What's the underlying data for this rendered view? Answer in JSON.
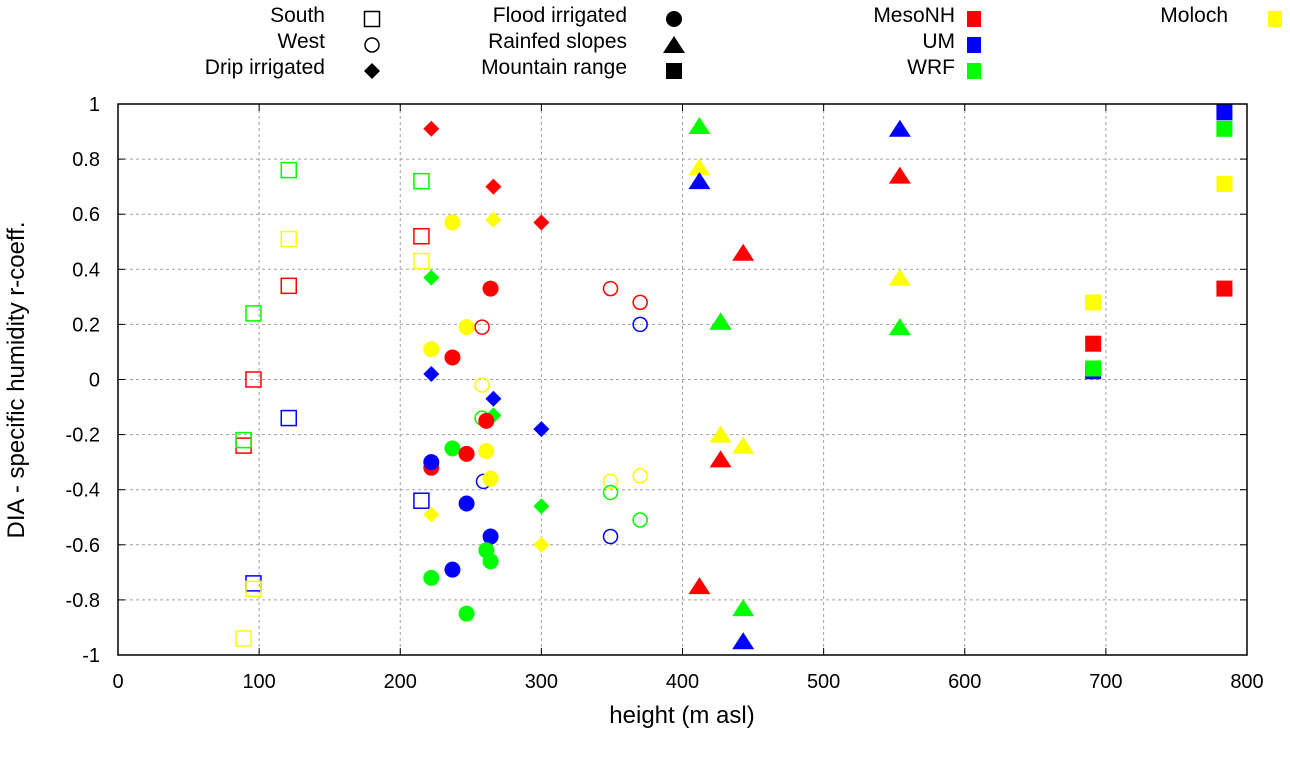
{
  "chart_data": {
    "type": "scatter",
    "title": "",
    "xlabel": "height (m asl)",
    "ylabel": "DIA - specific humidity r-coeff.",
    "xlim": [
      0,
      800
    ],
    "ylim": [
      -1,
      1
    ],
    "xticks": [
      "0",
      "100",
      "200",
      "300",
      "400",
      "500",
      "600",
      "700",
      "800"
    ],
    "yticks": [
      "1",
      "0.8",
      "0.6",
      "0.4",
      "0.2",
      "0",
      "-0.2",
      "-0.4",
      "-0.6",
      "-0.8",
      "-1"
    ],
    "grid": true,
    "legend_position": "top",
    "legend_sites": [
      {
        "label": "South",
        "marker": "open-square"
      },
      {
        "label": "West",
        "marker": "open-circle"
      },
      {
        "label": "Drip irrigated",
        "marker": "filled-diamond"
      },
      {
        "label": "Flood irrigated",
        "marker": "filled-circle"
      },
      {
        "label": "Rainfed slopes",
        "marker": "filled-triangle"
      },
      {
        "label": "Mountain range",
        "marker": "filled-square"
      }
    ],
    "legend_models": [
      {
        "label": "MesoNH",
        "color": "#ff0000"
      },
      {
        "label": "UM",
        "color": "#0000ff"
      },
      {
        "label": "WRF",
        "color": "#00ff00"
      },
      {
        "label": "Moloch",
        "color": "#ffff00"
      }
    ],
    "series": [
      {
        "site": "South",
        "marker": "open-square",
        "points": [
          {
            "model": "WRF",
            "x": 121,
            "y": 0.76
          },
          {
            "model": "Moloch",
            "x": 121,
            "y": 0.51
          },
          {
            "model": "MesoNH",
            "x": 121,
            "y": 0.34
          },
          {
            "model": "WRF",
            "x": 96,
            "y": 0.24
          },
          {
            "model": "MesoNH",
            "x": 96,
            "y": 0.0
          },
          {
            "model": "UM",
            "x": 121,
            "y": -0.14
          },
          {
            "model": "MesoNH",
            "x": 89,
            "y": -0.24
          },
          {
            "model": "WRF",
            "x": 89,
            "y": -0.22
          },
          {
            "model": "UM",
            "x": 96,
            "y": -0.74
          },
          {
            "model": "Moloch",
            "x": 96,
            "y": -0.76
          },
          {
            "model": "Moloch",
            "x": 89,
            "y": -0.94
          },
          {
            "model": "WRF",
            "x": 215,
            "y": 0.72
          },
          {
            "model": "MesoNH",
            "x": 215,
            "y": 0.52
          },
          {
            "model": "Moloch",
            "x": 215,
            "y": 0.43
          },
          {
            "model": "UM",
            "x": 215,
            "y": -0.44
          }
        ]
      },
      {
        "site": "West",
        "marker": "open-circle",
        "points": [
          {
            "model": "MesoNH",
            "x": 349,
            "y": 0.33
          },
          {
            "model": "MesoNH",
            "x": 370,
            "y": 0.28
          },
          {
            "model": "UM",
            "x": 370,
            "y": 0.2
          },
          {
            "model": "MesoNH",
            "x": 258,
            "y": 0.19
          },
          {
            "model": "Moloch",
            "x": 258,
            "y": -0.02
          },
          {
            "model": "WRF",
            "x": 258,
            "y": -0.14
          },
          {
            "model": "UM",
            "x": 261,
            "y": -0.26
          },
          {
            "model": "UM",
            "x": 259,
            "y": -0.37
          },
          {
            "model": "Moloch",
            "x": 349,
            "y": -0.37
          },
          {
            "model": "Moloch",
            "x": 370,
            "y": -0.35
          },
          {
            "model": "WRF",
            "x": 349,
            "y": -0.41
          },
          {
            "model": "WRF",
            "x": 370,
            "y": -0.51
          },
          {
            "model": "UM",
            "x": 349,
            "y": -0.57
          }
        ]
      },
      {
        "site": "Drip irrigated",
        "marker": "filled-diamond",
        "points": [
          {
            "model": "MesoNH",
            "x": 222,
            "y": 0.91
          },
          {
            "model": "MesoNH",
            "x": 266,
            "y": 0.7
          },
          {
            "model": "Moloch",
            "x": 266,
            "y": 0.58
          },
          {
            "model": "MesoNH",
            "x": 300,
            "y": 0.57
          },
          {
            "model": "WRF",
            "x": 222,
            "y": 0.37
          },
          {
            "model": "UM",
            "x": 222,
            "y": 0.02
          },
          {
            "model": "UM",
            "x": 266,
            "y": -0.07
          },
          {
            "model": "WRF",
            "x": 266,
            "y": -0.13
          },
          {
            "model": "UM",
            "x": 300,
            "y": -0.18
          },
          {
            "model": "WRF",
            "x": 300,
            "y": -0.46
          },
          {
            "model": "Moloch",
            "x": 222,
            "y": -0.49
          },
          {
            "model": "Moloch",
            "x": 300,
            "y": -0.6
          }
        ]
      },
      {
        "site": "Flood irrigated",
        "marker": "filled-circle",
        "points": [
          {
            "model": "Moloch",
            "x": 237,
            "y": 0.57
          },
          {
            "model": "MesoNH",
            "x": 264,
            "y": 0.33
          },
          {
            "model": "Moloch",
            "x": 247,
            "y": 0.19
          },
          {
            "model": "Moloch",
            "x": 222,
            "y": 0.11
          },
          {
            "model": "MesoNH",
            "x": 237,
            "y": 0.08
          },
          {
            "model": "MesoNH",
            "x": 261,
            "y": -0.15
          },
          {
            "model": "WRF",
            "x": 237,
            "y": -0.25
          },
          {
            "model": "MesoNH",
            "x": 247,
            "y": -0.27
          },
          {
            "model": "Moloch",
            "x": 261,
            "y": -0.26
          },
          {
            "model": "MesoNH",
            "x": 222,
            "y": -0.32
          },
          {
            "model": "UM",
            "x": 222,
            "y": -0.3
          },
          {
            "model": "Moloch",
            "x": 264,
            "y": -0.36
          },
          {
            "model": "UM",
            "x": 247,
            "y": -0.45
          },
          {
            "model": "UM",
            "x": 264,
            "y": -0.57
          },
          {
            "model": "WRF",
            "x": 261,
            "y": -0.62
          },
          {
            "model": "WRF",
            "x": 264,
            "y": -0.66
          },
          {
            "model": "UM",
            "x": 237,
            "y": -0.69
          },
          {
            "model": "WRF",
            "x": 222,
            "y": -0.72
          },
          {
            "model": "WRF",
            "x": 247,
            "y": -0.85
          }
        ]
      },
      {
        "site": "Rainfed slopes",
        "marker": "filled-triangle",
        "points": [
          {
            "model": "WRF",
            "x": 412,
            "y": 0.92
          },
          {
            "model": "UM",
            "x": 554,
            "y": 0.91
          },
          {
            "model": "Moloch",
            "x": 412,
            "y": 0.77
          },
          {
            "model": "UM",
            "x": 412,
            "y": 0.72
          },
          {
            "model": "MesoNH",
            "x": 554,
            "y": 0.74
          },
          {
            "model": "MesoNH",
            "x": 443,
            "y": 0.46
          },
          {
            "model": "Moloch",
            "x": 554,
            "y": 0.37
          },
          {
            "model": "UM",
            "x": 427,
            "y": 0.21
          },
          {
            "model": "WRF",
            "x": 427,
            "y": 0.21
          },
          {
            "model": "WRF",
            "x": 554,
            "y": 0.19
          },
          {
            "model": "Moloch",
            "x": 427,
            "y": -0.2
          },
          {
            "model": "Moloch",
            "x": 443,
            "y": -0.24
          },
          {
            "model": "MesoNH",
            "x": 427,
            "y": -0.29
          },
          {
            "model": "MesoNH",
            "x": 412,
            "y": -0.75
          },
          {
            "model": "WRF",
            "x": 443,
            "y": -0.83
          },
          {
            "model": "UM",
            "x": 443,
            "y": -0.95
          }
        ]
      },
      {
        "site": "Mountain range",
        "marker": "filled-square",
        "points": [
          {
            "model": "UM",
            "x": 784,
            "y": 0.97
          },
          {
            "model": "WRF",
            "x": 784,
            "y": 0.91
          },
          {
            "model": "Moloch",
            "x": 784,
            "y": 0.71
          },
          {
            "model": "MesoNH",
            "x": 784,
            "y": 0.33
          },
          {
            "model": "Moloch",
            "x": 691,
            "y": 0.28
          },
          {
            "model": "MesoNH",
            "x": 691,
            "y": 0.13
          },
          {
            "model": "UM",
            "x": 691,
            "y": 0.03
          },
          {
            "model": "WRF",
            "x": 691,
            "y": 0.04
          }
        ]
      }
    ]
  }
}
